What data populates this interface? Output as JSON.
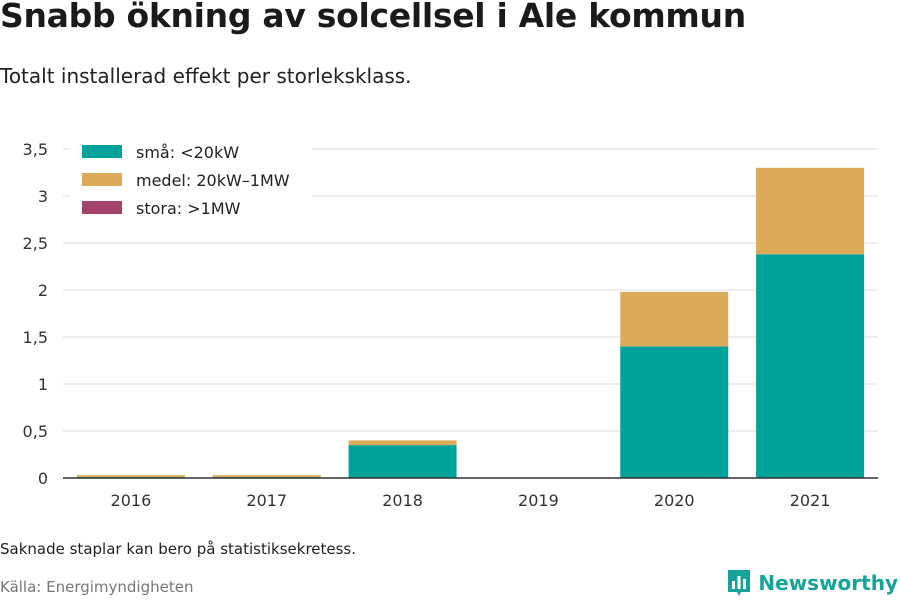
{
  "header": {
    "title": "Snabb ökning av solcellsel i Ale kommun",
    "subtitle": "Totalt installerad effekt per storleksklass."
  },
  "footer": {
    "note": "Saknade staplar kan bero på statistiksekretess.",
    "source": "Källa: Energimyndigheten",
    "brand": "Newsworthy"
  },
  "colors": {
    "small": "#00a39b",
    "medium": "#dbab5a",
    "large": "#a3426a",
    "grid": "#dddddd",
    "axis": "#333333",
    "brand": "#16a39a"
  },
  "icons": {
    "brand_logo": "bar-chart-icon"
  },
  "chart_data": {
    "type": "bar",
    "stacked": true,
    "categories": [
      "2016",
      "2017",
      "2018",
      "2019",
      "2020",
      "2021"
    ],
    "series": [
      {
        "name": "små: <20kW",
        "values": [
          0.01,
          0.01,
          0.35,
          0,
          1.4,
          2.38
        ]
      },
      {
        "name": "medel: 20kW–1MW",
        "values": [
          0.02,
          0.02,
          0.05,
          0,
          0.58,
          0.92
        ]
      },
      {
        "name": "stora: >1MW",
        "values": [
          0,
          0,
          0,
          0,
          0,
          0
        ]
      }
    ],
    "ylim": [
      0,
      3.5
    ],
    "yticks": [
      0,
      0.5,
      1,
      1.5,
      2,
      2.5,
      3,
      3.5
    ],
    "ytick_labels": [
      "0",
      "0,5",
      "1",
      "1,5",
      "2",
      "2,5",
      "3",
      "3,5"
    ],
    "grid": true,
    "legend_position": "top-left"
  }
}
